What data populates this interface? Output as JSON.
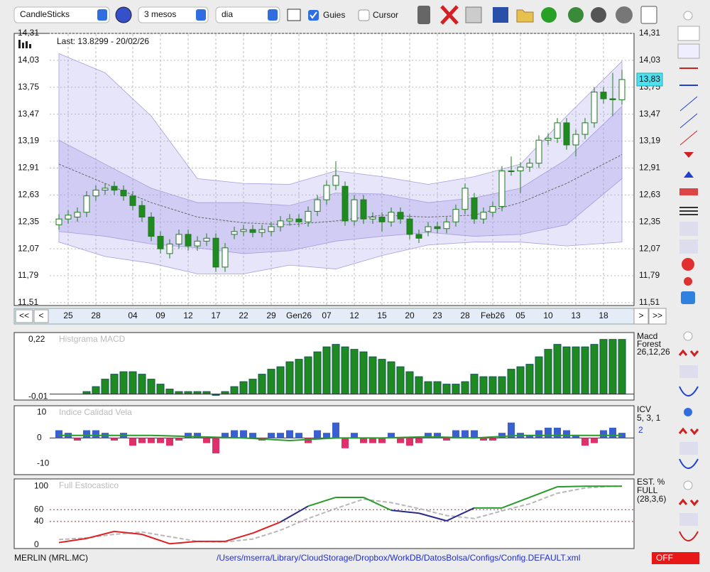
{
  "toolbar": {
    "chart_type": "CandleSticks",
    "period": "3 mesos",
    "interval": "dia",
    "guides": "Guies",
    "cursor": "Cursor"
  },
  "main": {
    "last": "Last: 13.8299 - 20/02/26",
    "price_tag": {
      "value": 13.83,
      "label": "13,83"
    },
    "ylim": [
      11.48,
      14.31
    ],
    "yticks": [
      {
        "value": 14.31,
        "label": "14,31"
      },
      {
        "value": 14.03,
        "label": "14,03"
      },
      {
        "value": 13.75,
        "label": "13,75"
      },
      {
        "value": 13.47,
        "label": "13,47"
      },
      {
        "value": 13.19,
        "label": "13,19"
      },
      {
        "value": 12.91,
        "label": "12,91"
      },
      {
        "value": 12.63,
        "label": "12,63"
      },
      {
        "value": 12.35,
        "label": "12,35"
      },
      {
        "value": 12.07,
        "label": "12,07"
      },
      {
        "value": 11.79,
        "label": "11,79"
      },
      {
        "value": 11.51,
        "label": "11,51"
      }
    ],
    "xlabels": [
      {
        "index": 1,
        "label": "25"
      },
      {
        "index": 4,
        "label": "28"
      },
      {
        "index": 8,
        "label": "04"
      },
      {
        "index": 11,
        "label": "09"
      },
      {
        "index": 14,
        "label": "12"
      },
      {
        "index": 17,
        "label": "17"
      },
      {
        "index": 20,
        "label": "22"
      },
      {
        "index": 23,
        "label": "29"
      },
      {
        "index": 26,
        "label": "Gen26"
      },
      {
        "index": 29,
        "label": "07"
      },
      {
        "index": 32,
        "label": "12"
      },
      {
        "index": 35,
        "label": "15"
      },
      {
        "index": 38,
        "label": "20"
      },
      {
        "index": 41,
        "label": "23"
      },
      {
        "index": 44,
        "label": "28"
      },
      {
        "index": 47,
        "label": "Feb26"
      },
      {
        "index": 50,
        "label": "05"
      },
      {
        "index": 53,
        "label": "10"
      },
      {
        "index": 56,
        "label": "13"
      },
      {
        "index": 59,
        "label": "18"
      }
    ],
    "candles": {
      "open": [
        12.32,
        12.38,
        12.4,
        12.45,
        12.62,
        12.68,
        12.72,
        12.68,
        12.62,
        12.52,
        12.4,
        12.2,
        12.02,
        12.12,
        12.22,
        12.1,
        12.15,
        12.18,
        11.88,
        12.22,
        12.25,
        12.27,
        12.24,
        12.25,
        12.3,
        12.36,
        12.38,
        12.35,
        12.46,
        12.58,
        12.73,
        12.72,
        12.36,
        12.58,
        12.38,
        12.4,
        12.35,
        12.45,
        12.38,
        12.22,
        12.25,
        12.3,
        12.28,
        12.35,
        12.48,
        12.6,
        12.38,
        12.45,
        12.51,
        12.88,
        12.88,
        12.92,
        12.96,
        13.2,
        13.22,
        13.38,
        13.15,
        13.26,
        13.38,
        13.7,
        13.63,
        13.62
      ],
      "high": [
        12.43,
        12.47,
        12.5,
        12.67,
        12.73,
        12.75,
        12.77,
        12.73,
        12.67,
        12.57,
        12.45,
        12.25,
        12.17,
        12.27,
        12.27,
        12.2,
        12.23,
        12.23,
        12.13,
        12.3,
        12.32,
        12.32,
        12.32,
        12.35,
        12.41,
        12.43,
        12.43,
        12.51,
        12.63,
        12.78,
        12.98,
        12.77,
        12.63,
        12.63,
        12.45,
        12.45,
        12.5,
        12.5,
        12.43,
        12.27,
        12.35,
        12.35,
        12.4,
        12.53,
        12.75,
        12.65,
        12.5,
        12.56,
        12.93,
        13.03,
        12.97,
        13.01,
        13.25,
        13.27,
        13.43,
        13.43,
        13.31,
        13.43,
        13.75,
        13.75,
        13.9,
        13.93
      ],
      "low": [
        12.27,
        12.33,
        12.35,
        12.4,
        12.57,
        12.63,
        12.63,
        12.57,
        12.47,
        12.35,
        12.15,
        12.02,
        11.97,
        12.07,
        12.05,
        12.05,
        12.1,
        11.83,
        11.83,
        12.17,
        12.2,
        12.19,
        12.19,
        12.2,
        12.25,
        12.31,
        12.3,
        12.3,
        12.41,
        12.53,
        12.68,
        12.31,
        12.31,
        12.33,
        12.33,
        12.25,
        12.3,
        12.33,
        12.17,
        12.13,
        12.2,
        12.23,
        12.23,
        12.3,
        12.43,
        12.33,
        12.33,
        12.4,
        12.46,
        12.83,
        12.65,
        12.87,
        12.91,
        13.15,
        13.17,
        13.1,
        13.03,
        13.21,
        13.33,
        13.58,
        13.45,
        13.57
      ],
      "close": [
        12.38,
        12.42,
        12.45,
        12.62,
        12.68,
        12.7,
        12.68,
        12.62,
        12.52,
        12.4,
        12.2,
        12.07,
        12.12,
        12.22,
        12.1,
        12.15,
        12.18,
        11.88,
        12.08,
        12.25,
        12.27,
        12.24,
        12.27,
        12.3,
        12.36,
        12.38,
        12.35,
        12.46,
        12.58,
        12.73,
        12.83,
        12.36,
        12.58,
        12.38,
        12.4,
        12.35,
        12.45,
        12.38,
        12.22,
        12.18,
        12.3,
        12.28,
        12.35,
        12.48,
        12.7,
        12.38,
        12.45,
        12.51,
        12.88,
        12.88,
        12.92,
        12.96,
        13.2,
        13.22,
        13.38,
        13.15,
        13.26,
        13.38,
        13.7,
        13.63,
        13.62,
        13.83
      ]
    },
    "up_color": "#ffffff",
    "down_color": "#1f8a1f",
    "edge_color": "#1f7a1f",
    "bands": {
      "index": [
        0,
        5,
        10,
        15,
        20,
        25,
        30,
        35,
        40,
        45,
        50,
        55,
        61
      ],
      "outer_upper": [
        14.1,
        13.9,
        13.45,
        12.8,
        12.75,
        12.74,
        12.88,
        12.82,
        12.74,
        12.82,
        12.95,
        13.45,
        14.02
      ],
      "outer_lower": [
        12.14,
        11.99,
        11.92,
        11.81,
        11.81,
        11.9,
        11.86,
        12.0,
        12.11,
        12.14,
        12.14,
        12.1,
        12.14
      ],
      "inner_upper": [
        13.2,
        12.95,
        12.7,
        12.55,
        12.55,
        12.52,
        12.65,
        12.64,
        12.55,
        12.6,
        12.7,
        13.0,
        13.55
      ],
      "inner_lower": [
        12.25,
        12.2,
        12.12,
        12.08,
        12.02,
        12.05,
        12.15,
        12.2,
        12.24,
        12.2,
        12.22,
        12.32,
        12.8
      ],
      "middle": [
        12.95,
        12.75,
        12.55,
        12.4,
        12.34,
        12.32,
        12.36,
        12.42,
        12.4,
        12.42,
        12.55,
        12.75,
        13.05
      ]
    }
  },
  "nav": {
    "first": "<<",
    "prev": "<",
    "next": ">",
    "last": ">>"
  },
  "macd": {
    "title": "Histgrama MACD",
    "legend": [
      "Macd",
      "Forest",
      "26,12,26"
    ],
    "ylim": [
      -0.024,
      0.242
    ],
    "yticks": [
      {
        "value": 0.22,
        "label": "0,22"
      },
      {
        "value": -0.01,
        "label": "-0,01"
      }
    ],
    "color": "#1f8a1f",
    "values": [
      0,
      0,
      0,
      0.01,
      0.03,
      0.06,
      0.08,
      0.09,
      0.09,
      0.08,
      0.06,
      0.04,
      0.02,
      0.01,
      0.01,
      0.01,
      0.01,
      -0.005,
      0.01,
      0.03,
      0.05,
      0.06,
      0.08,
      0.1,
      0.11,
      0.13,
      0.14,
      0.15,
      0.17,
      0.19,
      0.2,
      0.19,
      0.18,
      0.17,
      0.15,
      0.14,
      0.13,
      0.11,
      0.09,
      0.07,
      0.05,
      0.05,
      0.04,
      0.04,
      0.05,
      0.08,
      0.07,
      0.07,
      0.07,
      0.1,
      0.11,
      0.12,
      0.15,
      0.18,
      0.2,
      0.19,
      0.19,
      0.19,
      0.2,
      0.22,
      0.22,
      0.22
    ]
  },
  "icv": {
    "title": "Indice Calidad Vela",
    "legend": [
      "ICV",
      "5, 3, 1"
    ],
    "legend_value": 2,
    "ylim": [
      -14,
      12
    ],
    "yticks": [
      10,
      0,
      -10
    ],
    "pos_color": "#3a5fd0",
    "neg_color": "#e0306a",
    "line_color": "#2a9a2a",
    "values": [
      3,
      2,
      -1,
      3,
      3,
      2,
      -1,
      2,
      -3,
      -2,
      -2,
      -2,
      -3,
      -1,
      2,
      2,
      -2,
      -6,
      2,
      3,
      3,
      2,
      -1,
      2,
      2,
      3,
      2,
      -2,
      3,
      2,
      6,
      -4,
      2,
      -2,
      -2,
      -2,
      2,
      -2,
      -3,
      -2,
      2,
      2,
      -1,
      3,
      3,
      3,
      -1,
      -1,
      2,
      6,
      2,
      1,
      3,
      4,
      4,
      3,
      1,
      -3,
      -2,
      3,
      4,
      2
    ],
    "line": {
      "index": [
        0,
        5,
        10,
        15,
        20,
        25,
        30,
        35,
        40,
        45,
        50,
        55,
        61
      ],
      "values": [
        1,
        1,
        1,
        0.5,
        0,
        -1,
        0,
        0,
        0.5,
        0,
        1,
        1,
        1
      ]
    }
  },
  "stoch": {
    "title": "Full Estocastico",
    "legend": [
      "EST. %",
      "FULL",
      "(28,3,6)"
    ],
    "ylim": [
      -5,
      110
    ],
    "yticks": [
      0,
      40,
      60,
      100
    ],
    "levels": [
      40,
      60
    ],
    "low_color": "#e02020",
    "mid_color": "#2a2a8a",
    "high_color": "#2a9a2a",
    "d_color": "#b8b8b8",
    "k": {
      "index": [
        0,
        3,
        6,
        9,
        12,
        15,
        18,
        21,
        24,
        27,
        30,
        33,
        36,
        39,
        42,
        45,
        48,
        51,
        54,
        57,
        60,
        61
      ],
      "values": [
        4,
        11,
        23,
        18,
        2,
        6,
        6,
        20,
        39,
        66,
        81,
        81,
        59,
        54,
        41,
        63,
        63,
        81,
        99,
        100,
        100,
        100
      ]
    },
    "d": {
      "index": [
        0,
        3,
        6,
        9,
        12,
        15,
        18,
        21,
        24,
        27,
        30,
        33,
        36,
        39,
        42,
        45,
        48,
        51,
        54,
        57,
        60,
        61
      ],
      "values": [
        9,
        12,
        18,
        22,
        14,
        6,
        5,
        10,
        25,
        45,
        62,
        78,
        72,
        62,
        50,
        45,
        58,
        70,
        88,
        97,
        100,
        100
      ]
    }
  },
  "status": {
    "symbol": "MERLIN (MRL.MC)",
    "path": "/Users/mserra/Library/CloudStorage/Dropbox/WorkDB/DatosBolsa/Configs/Config.DEFAULT.xml",
    "state": "OFF"
  }
}
